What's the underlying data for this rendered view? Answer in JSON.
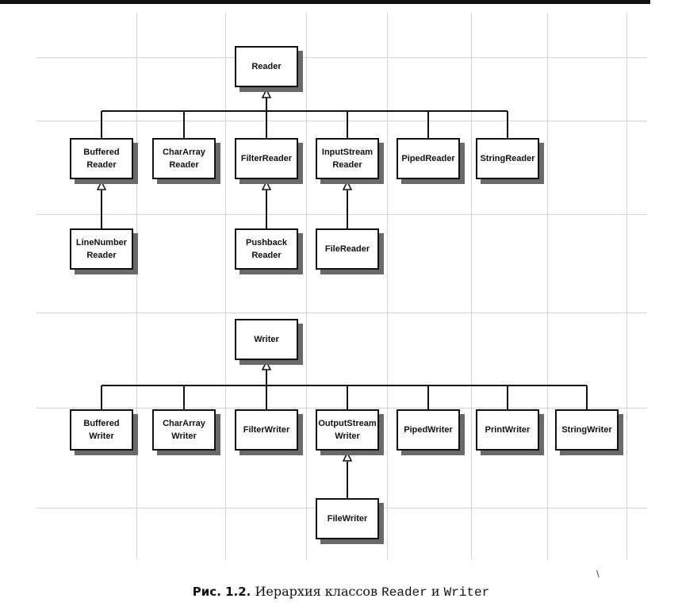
{
  "diagram": {
    "reader": {
      "root": "Reader",
      "children": {
        "buffered_reader": "Buffered\nReader",
        "chararray_reader": "CharArray\nReader",
        "filter_reader": "FilterReader",
        "inputstream_reader": "InputStream\nReader",
        "piped_reader": "PipedReader",
        "string_reader": "StringReader"
      },
      "grandchildren": {
        "linenumber_reader": "LineNumber\nReader",
        "pushback_reader": "Pushback\nReader",
        "file_reader": "FileReader"
      }
    },
    "writer": {
      "root": "Writer",
      "children": {
        "buffered_writer": "Buffered\nWriter",
        "chararray_writer": "CharArray\nWriter",
        "filter_writer": "FilterWriter",
        "outputstream_writer": "OutputStream\nWriter",
        "piped_writer": "PipedWriter",
        "print_writer": "PrintWriter",
        "string_writer": "StringWriter"
      },
      "grandchildren": {
        "file_writer": "FileWriter"
      }
    }
  },
  "caption": {
    "label": "Рис. 1.2.",
    "text": " Иерархия классов ",
    "reader": "Reader",
    "conj": " и ",
    "writer": "Writer"
  },
  "stray_mark": "\\"
}
